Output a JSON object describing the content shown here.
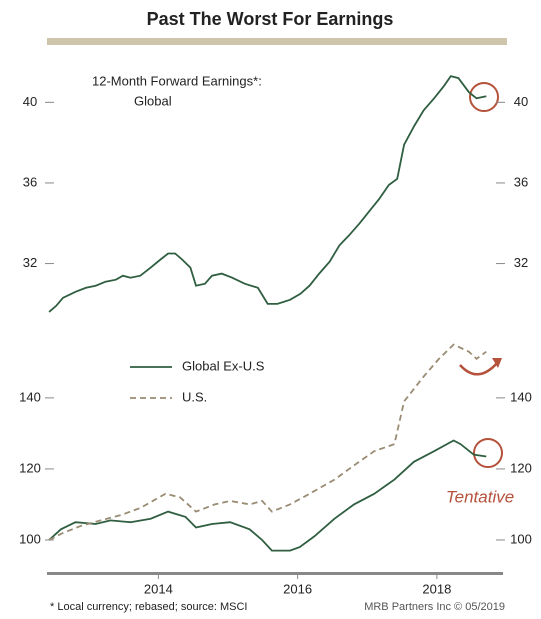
{
  "title": "Past The Worst For Earnings",
  "footnote": "* Local currency; rebased; source: MSCI",
  "source": "MRB Partners Inc © 05/2019",
  "chart_data": [
    {
      "type": "line",
      "annotations": [
        "12-Month Forward Earnings*:",
        "Global"
      ],
      "xlim": [
        2012.4,
        2018.95
      ],
      "ylim": [
        29.2,
        42.1
      ],
      "yticks": [
        32,
        36,
        40
      ],
      "series": [
        {
          "color": "#2f5e40",
          "style": "solid",
          "x": [
            2012.43,
            2012.53,
            2012.63,
            2012.81,
            2012.96,
            2013.1,
            2013.24,
            2013.39,
            2013.49,
            2013.6,
            2013.74,
            2013.89,
            2014.03,
            2014.14,
            2014.24,
            2014.34,
            2014.46,
            2014.54,
            2014.67,
            2014.77,
            2014.91,
            2015.06,
            2015.24,
            2015.43,
            2015.57,
            2015.71,
            2015.89,
            2016.04,
            2016.17,
            2016.31,
            2016.46,
            2016.6,
            2016.74,
            2016.89,
            2017.03,
            2017.17,
            2017.31,
            2017.43,
            2017.53,
            2017.67,
            2017.81,
            2017.96,
            2018.1,
            2018.2,
            2018.31,
            2018.46,
            2018.57,
            2018.71
          ],
          "values": [
            29.6,
            29.9,
            30.3,
            30.6,
            30.8,
            30.9,
            31.1,
            31.2,
            31.4,
            31.3,
            31.4,
            31.8,
            32.2,
            32.5,
            32.5,
            32.2,
            31.8,
            30.9,
            31.0,
            31.4,
            31.5,
            31.3,
            31.0,
            30.8,
            30.0,
            30.0,
            30.2,
            30.5,
            30.9,
            31.5,
            32.1,
            32.9,
            33.4,
            34.0,
            34.6,
            35.2,
            35.9,
            36.2,
            37.9,
            38.8,
            39.6,
            40.2,
            40.8,
            41.3,
            41.2,
            40.5,
            40.2,
            40.3
          ]
        }
      ]
    },
    {
      "type": "line",
      "annotations": [
        "Tentative"
      ],
      "xlim": [
        2012.4,
        2018.95
      ],
      "xticks": [
        2014,
        2016,
        2018
      ],
      "ylim": [
        90.7,
        156.3
      ],
      "yticks": [
        100,
        120,
        140
      ],
      "series": [
        {
          "name": "Global Ex-U.S",
          "color": "#2f5e40",
          "style": "solid",
          "x": [
            2012.43,
            2012.6,
            2012.81,
            2013.1,
            2013.31,
            2013.6,
            2013.89,
            2014.14,
            2014.39,
            2014.54,
            2014.77,
            2015.03,
            2015.31,
            2015.49,
            2015.63,
            2015.89,
            2016.03,
            2016.24,
            2016.53,
            2016.81,
            2017.1,
            2017.39,
            2017.67,
            2017.96,
            2018.24,
            2018.34,
            2018.53,
            2018.71
          ],
          "values": [
            100,
            103,
            105,
            104.5,
            105.5,
            105,
            106,
            108,
            106.5,
            103.5,
            104.5,
            105,
            103,
            100,
            97,
            97,
            98,
            101,
            106,
            110,
            113,
            117,
            122,
            125,
            128,
            127,
            124,
            123.5
          ]
        },
        {
          "name": "U.S.",
          "color": "#9a8c74",
          "style": "dashed",
          "x": [
            2012.43,
            2012.63,
            2012.89,
            2013.17,
            2013.46,
            2013.74,
            2014.1,
            2014.31,
            2014.54,
            2014.81,
            2015.03,
            2015.31,
            2015.49,
            2015.63,
            2015.89,
            2016.17,
            2016.53,
            2016.81,
            2017.1,
            2017.39,
            2017.53,
            2017.81,
            2018.03,
            2018.24,
            2018.46,
            2018.57,
            2018.71
          ],
          "values": [
            100,
            102,
            104,
            105.5,
            107,
            109,
            113,
            112,
            108,
            110,
            111,
            110,
            111,
            108,
            110,
            113,
            117,
            121,
            125,
            127,
            139,
            146,
            151,
            155,
            153,
            151,
            153
          ]
        }
      ]
    }
  ]
}
